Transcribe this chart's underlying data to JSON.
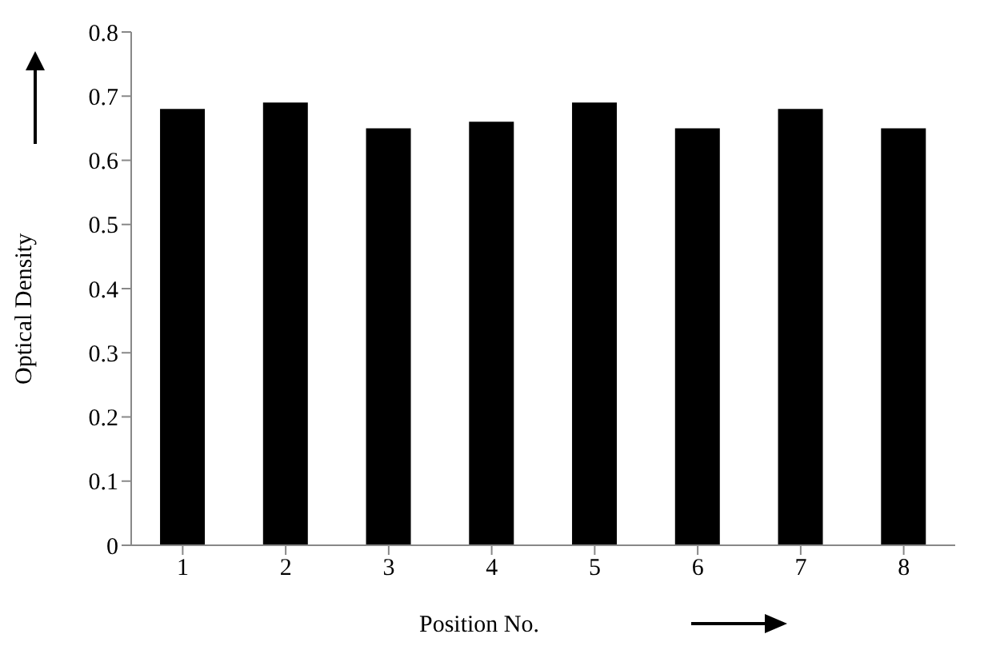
{
  "chart_data": {
    "type": "bar",
    "xlabel": "Position No.",
    "ylabel": "Optical Density",
    "categories": [
      "1",
      "2",
      "3",
      "4",
      "5",
      "6",
      "7",
      "8"
    ],
    "values": [
      0.68,
      0.69,
      0.65,
      0.66,
      0.69,
      0.65,
      0.68,
      0.65
    ],
    "color": "#000000",
    "ylim": [
      0,
      0.8
    ],
    "yticks": [
      0,
      0.1,
      0.2,
      0.3,
      0.4,
      0.5,
      0.6,
      0.7,
      0.8
    ],
    "grid": false,
    "legend": false
  }
}
